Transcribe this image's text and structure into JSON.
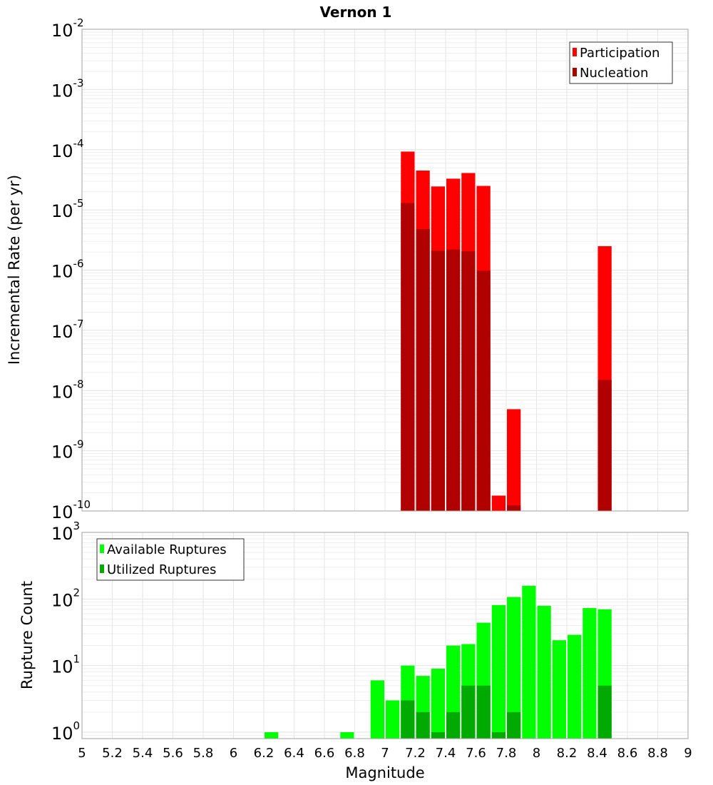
{
  "chart_data": [
    {
      "type": "bar",
      "title": "Vernon 1",
      "xlabel": "Magnitude",
      "ylabel": "Incremental Rate (per yr)",
      "yscale": "log",
      "ylim": [
        1e-10,
        0.01
      ],
      "xlim": [
        5,
        9
      ],
      "grid": true,
      "legend_position": "top-right",
      "series": [
        {
          "name": "Participation",
          "color": "#ff0000",
          "x": [
            7.15,
            7.25,
            7.35,
            7.45,
            7.55,
            7.65,
            7.75,
            7.85,
            8.45
          ],
          "values": [
            9.3e-05,
            4.5e-05,
            2.45e-05,
            3.3e-05,
            4.1e-05,
            2.5e-05,
            1.8e-10,
            4.9e-09,
            2.5e-06
          ]
        },
        {
          "name": "Nucleation",
          "color": "#b00000",
          "x": [
            7.15,
            7.25,
            7.35,
            7.45,
            7.55,
            7.65,
            7.85,
            8.45
          ],
          "values": [
            1.3e-05,
            4.8e-06,
            2.1e-06,
            2.2e-06,
            2.05e-06,
            9.8e-07,
            1.24e-10,
            1.5e-08
          ]
        }
      ]
    },
    {
      "type": "bar",
      "xlabel": "Magnitude",
      "ylabel": "Rupture Count",
      "yscale": "log",
      "ylim": [
        0.8,
        1000
      ],
      "xlim": [
        5,
        9
      ],
      "grid": true,
      "legend_position": "top-left",
      "xticks": [
        "5",
        "5.2",
        "5.4",
        "5.6",
        "5.8",
        "6",
        "6.2",
        "6.4",
        "6.6",
        "6.8",
        "7",
        "7.2",
        "7.4",
        "7.6",
        "7.8",
        "8",
        "8.2",
        "8.4",
        "8.6",
        "8.8",
        "9"
      ],
      "series": [
        {
          "name": "Available Ruptures",
          "color": "#00ff00",
          "x": [
            6.25,
            6.75,
            6.95,
            7.05,
            7.15,
            7.25,
            7.35,
            7.45,
            7.55,
            7.65,
            7.75,
            7.85,
            7.95,
            8.05,
            8.15,
            8.25,
            8.35,
            8.45
          ],
          "values": [
            1,
            1,
            6,
            3,
            10,
            7,
            9,
            20,
            21,
            44,
            81,
            107,
            158,
            79,
            24,
            29,
            73,
            70
          ]
        },
        {
          "name": "Utilized Ruptures",
          "color": "#00aa00",
          "x": [
            7.15,
            7.25,
            7.35,
            7.45,
            7.55,
            7.65,
            7.75,
            7.85,
            8.45
          ],
          "values": [
            3,
            2,
            1,
            2,
            5,
            5,
            1,
            2,
            5
          ]
        }
      ]
    }
  ],
  "top_yticks": [
    "-10",
    "-9",
    "-8",
    "-7",
    "-6",
    "-5",
    "-4",
    "-3",
    "-2"
  ],
  "bottom_yticks": [
    "0",
    "1",
    "2",
    "3"
  ],
  "tick_base": "10"
}
